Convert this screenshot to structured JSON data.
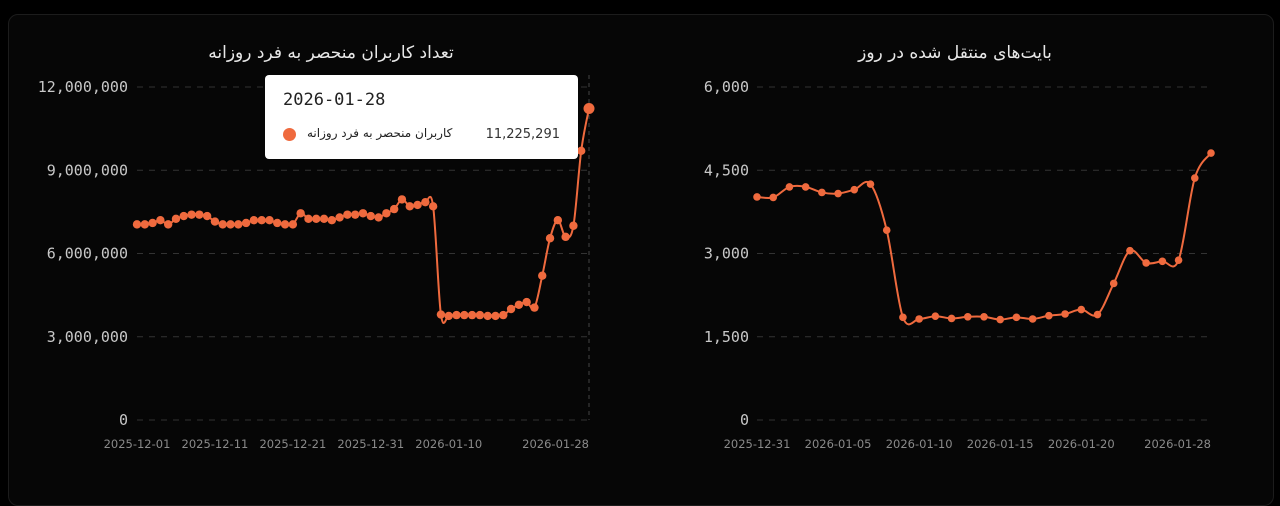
{
  "accent_color": "#ef6a3e",
  "chart_data": [
    {
      "type": "line",
      "title": "تعداد کاربران منحصر به فرد روزانه",
      "series": [
        {
          "name": "کاربران منحصر به فرد روزانه",
          "values": [
            7050000,
            7050000,
            7100000,
            7200000,
            7050000,
            7250000,
            7350000,
            7400000,
            7400000,
            7350000,
            7150000,
            7050000,
            7050000,
            7050000,
            7100000,
            7200000,
            7200000,
            7200000,
            7100000,
            7050000,
            7050000,
            7450000,
            7250000,
            7250000,
            7250000,
            7200000,
            7300000,
            7400000,
            7400000,
            7450000,
            7350000,
            7300000,
            7450000,
            7600000,
            7950000,
            7700000,
            7750000,
            7850000,
            7700000,
            3800000,
            3750000,
            3780000,
            3780000,
            3780000,
            3780000,
            3750000,
            3750000,
            3780000,
            4000000,
            4150000,
            4250000,
            4050000,
            5200000,
            6550000,
            7200000,
            6600000,
            7000000,
            9700000,
            11225291
          ]
        }
      ],
      "x_start": "2025-12-01",
      "x_end": "2026-01-28",
      "x_ticks": [
        "2025-12-01",
        "2025-12-11",
        "2025-12-21",
        "2025-12-31",
        "2026-01-10",
        "2026-01-28"
      ],
      "y_ticks": [
        "0",
        "3,000,000",
        "6,000,000",
        "9,000,000",
        "12,000,000"
      ],
      "ylim": [
        0,
        12000000
      ],
      "grid": true,
      "tooltip": {
        "date": "2026-01-28",
        "series": "کاربران منحصر به فرد روزانه",
        "value": "11,225,291"
      }
    },
    {
      "type": "line",
      "title": "بایت‌های منتقل شده در روز",
      "series": [
        {
          "values": [
            4020,
            4010,
            4200,
            4200,
            4100,
            4080,
            4150,
            4250,
            3420,
            1850,
            1820,
            1870,
            1830,
            1860,
            1860,
            1810,
            1850,
            1820,
            1880,
            1910,
            1990,
            1900,
            2460,
            3050,
            2830,
            2860,
            2880,
            4360,
            4810
          ]
        }
      ],
      "x_start": "2025-12-31",
      "x_end": "2026-01-28",
      "x_ticks": [
        "2025-12-31",
        "2026-01-05",
        "2026-01-10",
        "2026-01-15",
        "2026-01-20",
        "2026-01-28"
      ],
      "y_ticks": [
        "0",
        "1,500",
        "3,000",
        "4,500",
        "6,000"
      ],
      "ylim": [
        0,
        6000
      ],
      "grid": true
    }
  ]
}
